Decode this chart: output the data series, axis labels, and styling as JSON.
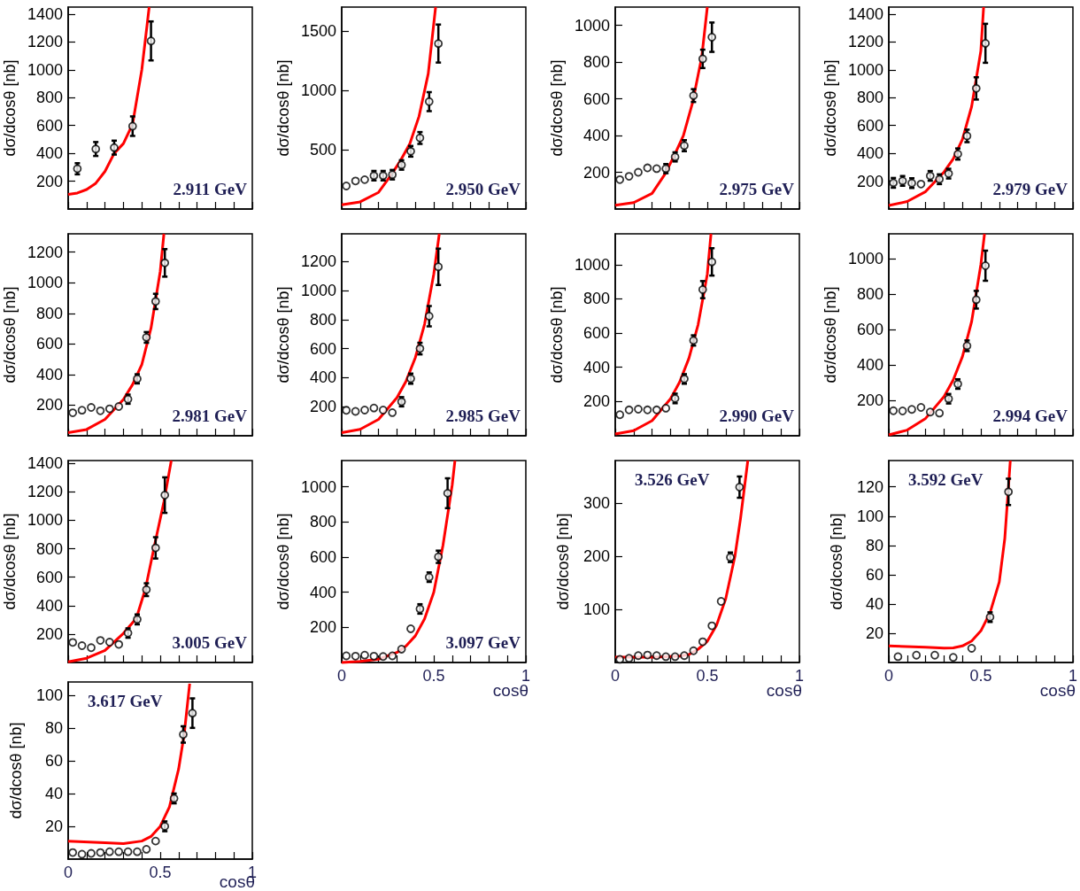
{
  "chart_data": [
    {
      "type": "scatter",
      "annotations": [
        "2.911 GeV"
      ],
      "ylabel": "dσ/dcosθ [nb]",
      "xlim": [
        0,
        1
      ],
      "xticks": [
        0,
        {
          "value": 0.1,
          "label": null
        },
        {
          "value": 0.2,
          "label": null
        },
        {
          "value": 0.3,
          "label": null
        },
        {
          "value": 0.4,
          "label": null
        },
        0.5,
        {
          "value": 0.6,
          "label": null
        },
        {
          "value": 0.7,
          "label": null
        },
        {
          "value": 0.8,
          "label": null
        },
        {
          "value": 0.9,
          "label": null
        },
        1
      ],
      "ylim": [
        0,
        1450
      ],
      "yticks": [
        200,
        400,
        600,
        800,
        1000,
        1200,
        1400
      ],
      "tick_labels": "y",
      "series": [
        {
          "type": "scatter",
          "marker": "circle",
          "color": "#000000",
          "x": [
            0.05,
            0.15,
            0.25,
            0.35,
            0.45
          ],
          "values": [
            289,
            431,
            441,
            595,
            1207
          ],
          "errors": [
            40,
            50,
            50,
            70,
            140
          ]
        },
        {
          "type": "line",
          "color": "#ff0000",
          "x": [
            0,
            0.05,
            0.1,
            0.15,
            0.2,
            0.25,
            0.3,
            0.35,
            0.4,
            0.44
          ],
          "values": [
            105,
            115,
            140,
            185,
            270,
            400,
            470,
            610,
            1000,
            1450
          ]
        }
      ]
    },
    {
      "type": "scatter",
      "annotations": [
        "2.950 GeV"
      ],
      "ylabel": "dσ/dcosθ [nb]",
      "xlim": [
        0,
        1
      ],
      "xticks": [
        0,
        {
          "value": 0.1,
          "label": null
        },
        {
          "value": 0.2,
          "label": null
        },
        {
          "value": 0.3,
          "label": null
        },
        {
          "value": 0.4,
          "label": null
        },
        0.5,
        {
          "value": 0.6,
          "label": null
        },
        {
          "value": 0.7,
          "label": null
        },
        {
          "value": 0.8,
          "label": null
        },
        {
          "value": 0.9,
          "label": null
        },
        1
      ],
      "ylim": [
        0,
        1700
      ],
      "yticks": [
        500,
        1000,
        1500
      ],
      "tick_labels": "y",
      "series": [
        {
          "type": "scatter",
          "marker": "circle",
          "color": "#000000",
          "x": [
            0.025,
            0.075,
            0.125,
            0.175,
            0.225,
            0.275,
            0.325,
            0.375,
            0.425,
            0.475,
            0.525
          ],
          "values": [
            194,
            236,
            247,
            281,
            281,
            289,
            371,
            486,
            598,
            904,
            1393
          ],
          "errors": [
            null,
            null,
            null,
            40,
            40,
            40,
            40,
            45,
            50,
            80,
            160
          ]
        },
        {
          "type": "line",
          "color": "#ff0000",
          "x": [
            0,
            0.1,
            0.2,
            0.27,
            0.32,
            0.37,
            0.42,
            0.47,
            0.51
          ],
          "values": [
            35,
            60,
            140,
            290,
            410,
            550,
            780,
            1140,
            1700
          ]
        }
      ]
    },
    {
      "type": "scatter",
      "annotations": [
        "2.975 GeV"
      ],
      "ylabel": "dσ/dcosθ [nb]",
      "xlim": [
        0,
        1
      ],
      "xticks": [
        0,
        {
          "value": 0.1,
          "label": null
        },
        {
          "value": 0.2,
          "label": null
        },
        {
          "value": 0.3,
          "label": null
        },
        {
          "value": 0.4,
          "label": null
        },
        0.5,
        {
          "value": 0.6,
          "label": null
        },
        {
          "value": 0.7,
          "label": null
        },
        {
          "value": 0.8,
          "label": null
        },
        {
          "value": 0.9,
          "label": null
        },
        1
      ],
      "ylim": [
        0,
        1100
      ],
      "yticks": [
        200,
        400,
        600,
        800,
        1000
      ],
      "tick_labels": "y",
      "series": [
        {
          "type": "scatter",
          "marker": "circle",
          "color": "#000000",
          "x": [
            0.025,
            0.075,
            0.125,
            0.175,
            0.225,
            0.275,
            0.325,
            0.375,
            0.425,
            0.475,
            0.525
          ],
          "values": [
            160,
            178,
            200,
            224,
            220,
            220,
            284,
            345,
            618,
            818,
            936
          ],
          "errors": [
            null,
            null,
            null,
            null,
            null,
            25,
            25,
            30,
            35,
            50,
            80
          ]
        },
        {
          "type": "line",
          "color": "#ff0000",
          "x": [
            0,
            0.1,
            0.2,
            0.27,
            0.32,
            0.37,
            0.42,
            0.47,
            0.5
          ],
          "values": [
            20,
            35,
            85,
            190,
            290,
            400,
            580,
            830,
            1100
          ]
        }
      ]
    },
    {
      "type": "scatter",
      "annotations": [
        "2.979 GeV"
      ],
      "ylabel": "dσ/dcosθ [nb]",
      "xlim": [
        0,
        1
      ],
      "xticks": [
        0,
        {
          "value": 0.1,
          "label": null
        },
        {
          "value": 0.2,
          "label": null
        },
        {
          "value": 0.3,
          "label": null
        },
        {
          "value": 0.4,
          "label": null
        },
        0.5,
        {
          "value": 0.6,
          "label": null
        },
        {
          "value": 0.7,
          "label": null
        },
        {
          "value": 0.8,
          "label": null
        },
        {
          "value": 0.9,
          "label": null
        },
        1
      ],
      "ylim": [
        0,
        1450
      ],
      "yticks": [
        200,
        400,
        600,
        800,
        1000,
        1200,
        1400
      ],
      "tick_labels": "y",
      "series": [
        {
          "type": "scatter",
          "marker": "circle",
          "color": "#000000",
          "x": [
            0.025,
            0.075,
            0.125,
            0.175,
            0.225,
            0.275,
            0.325,
            0.375,
            0.425,
            0.475,
            0.525
          ],
          "values": [
            188,
            202,
            186,
            179,
            238,
            214,
            254,
            395,
            525,
            866,
            1190
          ],
          "errors": [
            35,
            35,
            35,
            null,
            35,
            35,
            35,
            40,
            45,
            80,
            140
          ]
        },
        {
          "type": "line",
          "color": "#ff0000",
          "x": [
            0,
            0.1,
            0.2,
            0.3,
            0.35,
            0.4,
            0.45,
            0.5,
            0.515
          ],
          "values": [
            25,
            54,
            125,
            266,
            360,
            500,
            736,
            1136,
            1450
          ]
        }
      ]
    },
    {
      "type": "scatter",
      "annotations": [
        "2.981 GeV"
      ],
      "ylabel": "dσ/dcosθ [nb]",
      "xlim": [
        0,
        1
      ],
      "xticks": [
        0,
        {
          "value": 0.1,
          "label": null
        },
        {
          "value": 0.2,
          "label": null
        },
        {
          "value": 0.3,
          "label": null
        },
        {
          "value": 0.4,
          "label": null
        },
        0.5,
        {
          "value": 0.6,
          "label": null
        },
        {
          "value": 0.7,
          "label": null
        },
        {
          "value": 0.8,
          "label": null
        },
        {
          "value": 0.9,
          "label": null
        },
        1
      ],
      "ylim": [
        0,
        1320
      ],
      "yticks": [
        200,
        400,
        600,
        800,
        1000,
        1200
      ],
      "tick_labels": "y",
      "series": [
        {
          "type": "scatter",
          "marker": "circle",
          "color": "#000000",
          "x": [
            0.025,
            0.075,
            0.125,
            0.175,
            0.225,
            0.275,
            0.325,
            0.375,
            0.425,
            0.475,
            0.525
          ],
          "values": [
            150,
            167,
            185,
            163,
            176,
            191,
            239,
            372,
            643,
            878,
            1130
          ],
          "errors": [
            null,
            null,
            null,
            null,
            null,
            null,
            30,
            30,
            35,
            50,
            90
          ]
        },
        {
          "type": "line",
          "color": "#ff0000",
          "x": [
            0,
            0.1,
            0.2,
            0.3,
            0.35,
            0.4,
            0.45,
            0.5,
            0.52
          ],
          "values": [
            20,
            41,
            107,
            237,
            335,
            465,
            704,
            1074,
            1320
          ]
        }
      ]
    },
    {
      "type": "scatter",
      "annotations": [
        "2.985 GeV"
      ],
      "ylabel": "dσ/dcosθ [nb]",
      "xlim": [
        0,
        1
      ],
      "xticks": [
        0,
        {
          "value": 0.1,
          "label": null
        },
        {
          "value": 0.2,
          "label": null
        },
        {
          "value": 0.3,
          "label": null
        },
        {
          "value": 0.4,
          "label": null
        },
        0.5,
        {
          "value": 0.6,
          "label": null
        },
        {
          "value": 0.7,
          "label": null
        },
        {
          "value": 0.8,
          "label": null
        },
        {
          "value": 0.9,
          "label": null
        },
        1
      ],
      "ylim": [
        0,
        1390
      ],
      "yticks": [
        200,
        400,
        600,
        800,
        1000,
        1200
      ],
      "tick_labels": "y",
      "series": [
        {
          "type": "scatter",
          "marker": "circle",
          "color": "#000000",
          "x": [
            0.025,
            0.075,
            0.125,
            0.175,
            0.225,
            0.275,
            0.325,
            0.375,
            0.425,
            0.475,
            0.525
          ],
          "values": [
            175,
            168,
            177,
            191,
            177,
            159,
            234,
            393,
            600,
            823,
            1163
          ],
          "errors": [
            null,
            null,
            null,
            null,
            null,
            null,
            32,
            35,
            40,
            70,
            125
          ]
        },
        {
          "type": "line",
          "color": "#ff0000",
          "x": [
            0,
            0.1,
            0.2,
            0.3,
            0.35,
            0.4,
            0.45,
            0.5,
            0.53
          ],
          "values": [
            21,
            44,
            113,
            262,
            377,
            538,
            768,
            1113,
            1390
          ]
        }
      ]
    },
    {
      "type": "scatter",
      "annotations": [
        "2.990 GeV"
      ],
      "ylabel": "dσ/dcosθ [nb]",
      "xlim": [
        0,
        1
      ],
      "xticks": [
        0,
        {
          "value": 0.1,
          "label": null
        },
        {
          "value": 0.2,
          "label": null
        },
        {
          "value": 0.3,
          "label": null
        },
        {
          "value": 0.4,
          "label": null
        },
        0.5,
        {
          "value": 0.6,
          "label": null
        },
        {
          "value": 0.7,
          "label": null
        },
        {
          "value": 0.8,
          "label": null
        },
        {
          "value": 0.9,
          "label": null
        },
        1
      ],
      "ylim": [
        0,
        1180
      ],
      "yticks": [
        200,
        400,
        600,
        800,
        1000
      ],
      "tick_labels": "y",
      "series": [
        {
          "type": "scatter",
          "marker": "circle",
          "color": "#000000",
          "x": [
            0.025,
            0.075,
            0.125,
            0.175,
            0.225,
            0.275,
            0.325,
            0.375,
            0.425,
            0.475,
            0.525
          ],
          "values": [
            123,
            151,
            155,
            151,
            151,
            161,
            218,
            332,
            557,
            854,
            1016
          ],
          "errors": [
            null,
            null,
            null,
            null,
            null,
            null,
            28,
            28,
            30,
            50,
            80
          ]
        },
        {
          "type": "line",
          "color": "#ff0000",
          "x": [
            0,
            0.1,
            0.2,
            0.3,
            0.35,
            0.4,
            0.45,
            0.5,
            0.52
          ],
          "values": [
            10,
            30,
            88,
            216,
            314,
            452,
            649,
            945,
            1180
          ]
        }
      ]
    },
    {
      "type": "scatter",
      "annotations": [
        "2.994 GeV"
      ],
      "ylabel": "dσ/dcosθ [nb]",
      "xlim": [
        0,
        1
      ],
      "xticks": [
        0,
        {
          "value": 0.1,
          "label": null
        },
        {
          "value": 0.2,
          "label": null
        },
        {
          "value": 0.3,
          "label": null
        },
        {
          "value": 0.4,
          "label": null
        },
        0.5,
        {
          "value": 0.6,
          "label": null
        },
        {
          "value": 0.7,
          "label": null
        },
        {
          "value": 0.8,
          "label": null
        },
        {
          "value": 0.9,
          "label": null
        },
        1
      ],
      "ylim": [
        0,
        1140
      ],
      "yticks": [
        200,
        400,
        600,
        800,
        1000
      ],
      "tick_labels": "y",
      "series": [
        {
          "type": "scatter",
          "marker": "circle",
          "color": "#000000",
          "x": [
            0.025,
            0.075,
            0.125,
            0.175,
            0.225,
            0.275,
            0.325,
            0.375,
            0.425,
            0.475,
            0.525
          ],
          "values": [
            141,
            140,
            149,
            160,
            134,
            128,
            209,
            292,
            508,
            768,
            960
          ],
          "errors": [
            null,
            null,
            null,
            null,
            null,
            null,
            27,
            27,
            30,
            50,
            85
          ]
        },
        {
          "type": "line",
          "color": "#ff0000",
          "x": [
            0,
            0.1,
            0.2,
            0.3,
            0.35,
            0.4,
            0.45,
            0.5,
            0.52
          ],
          "values": [
            5,
            32,
            98,
            221,
            315,
            447,
            645,
            966,
            1140
          ]
        }
      ]
    },
    {
      "type": "scatter",
      "annotations": [
        "3.005 GeV"
      ],
      "ylabel": "dσ/dcosθ [nb]",
      "xlim": [
        0,
        1
      ],
      "xticks": [
        0,
        {
          "value": 0.1,
          "label": null
        },
        {
          "value": 0.2,
          "label": null
        },
        {
          "value": 0.3,
          "label": null
        },
        {
          "value": 0.4,
          "label": null
        },
        0.5,
        {
          "value": 0.6,
          "label": null
        },
        {
          "value": 0.7,
          "label": null
        },
        {
          "value": 0.8,
          "label": null
        },
        {
          "value": 0.9,
          "label": null
        },
        1
      ],
      "ylim": [
        0,
        1420
      ],
      "yticks": [
        200,
        400,
        600,
        800,
        1000,
        1200,
        1400
      ],
      "tick_labels": "y",
      "series": [
        {
          "type": "scatter",
          "marker": "circle",
          "color": "#000000",
          "x": [
            0.025,
            0.075,
            0.125,
            0.175,
            0.225,
            0.275,
            0.325,
            0.375,
            0.425,
            0.475,
            0.525
          ],
          "values": [
            141,
            118,
            104,
            155,
            143,
            127,
            207,
            303,
            512,
            806,
            1177
          ],
          "errors": [
            null,
            null,
            null,
            null,
            null,
            null,
            33,
            35,
            45,
            75,
            125
          ]
        },
        {
          "type": "line",
          "color": "#ff0000",
          "x": [
            0,
            0.1,
            0.2,
            0.3,
            0.37,
            0.42,
            0.47,
            0.52,
            0.56
          ],
          "values": [
            5,
            30,
            85,
            205,
            310,
            520,
            830,
            1130,
            1420
          ]
        }
      ]
    },
    {
      "type": "scatter",
      "annotations": [
        "3.097 GeV"
      ],
      "xlabel": "cosθ",
      "ylabel": "dσ/dcosθ [nb]",
      "xlim": [
        0,
        1
      ],
      "xticks": [
        0,
        {
          "value": 0.1,
          "label": null
        },
        {
          "value": 0.2,
          "label": null
        },
        {
          "value": 0.3,
          "label": null
        },
        {
          "value": 0.4,
          "label": null
        },
        0.5,
        {
          "value": 0.6,
          "label": null
        },
        {
          "value": 0.7,
          "label": null
        },
        {
          "value": 0.8,
          "label": null
        },
        {
          "value": 0.9,
          "label": null
        },
        1
      ],
      "ylim": [
        0,
        1150
      ],
      "yticks": [
        200,
        400,
        600,
        800,
        1000
      ],
      "series": [
        {
          "type": "scatter",
          "marker": "circle",
          "color": "#000000",
          "x": [
            0.025,
            0.075,
            0.125,
            0.175,
            0.225,
            0.275,
            0.325,
            0.375,
            0.425,
            0.475,
            0.525,
            0.575
          ],
          "values": [
            38,
            36,
            42,
            36,
            34,
            38,
            76,
            192,
            305,
            486,
            602,
            964
          ],
          "errors": [
            null,
            null,
            null,
            null,
            null,
            null,
            null,
            null,
            27,
            27,
            35,
            85
          ]
        },
        {
          "type": "line",
          "color": "#ff0000",
          "x": [
            0,
            0.1,
            0.2,
            0.3,
            0.35,
            0.4,
            0.45,
            0.5,
            0.55,
            0.6,
            0.615
          ],
          "values": [
            0,
            6,
            19,
            57,
            95,
            152,
            248,
            400,
            667,
            1010,
            1150
          ]
        }
      ]
    },
    {
      "type": "scatter",
      "annotations": [
        "3.526 GeV"
      ],
      "xlabel": "cosθ",
      "ylabel": "dσ/dcosθ [nb]",
      "xlim": [
        0,
        1
      ],
      "xticks": [
        0,
        {
          "value": 0.1,
          "label": null
        },
        {
          "value": 0.2,
          "label": null
        },
        {
          "value": 0.3,
          "label": null
        },
        {
          "value": 0.4,
          "label": null
        },
        0.5,
        {
          "value": 0.6,
          "label": null
        },
        {
          "value": 0.7,
          "label": null
        },
        {
          "value": 0.8,
          "label": null
        },
        {
          "value": 0.9,
          "label": null
        },
        1
      ],
      "ylim": [
        0,
        380
      ],
      "yticks": [
        100,
        200,
        300
      ],
      "series": [
        {
          "type": "scatter",
          "marker": "circle",
          "color": "#000000",
          "x": [
            0.025,
            0.075,
            0.125,
            0.175,
            0.225,
            0.275,
            0.325,
            0.375,
            0.425,
            0.475,
            0.525,
            0.575,
            0.625,
            0.675
          ],
          "values": [
            6,
            8,
            13,
            14,
            13,
            11,
            11,
            13,
            22,
            39,
            69,
            115,
            198,
            330
          ],
          "errors": [
            null,
            null,
            null,
            null,
            null,
            null,
            null,
            null,
            null,
            null,
            null,
            null,
            9,
            20
          ]
        },
        {
          "type": "line",
          "color": "#ff0000",
          "x": [
            0,
            0.2,
            0.35,
            0.4,
            0.45,
            0.5,
            0.55,
            0.6,
            0.65,
            0.68,
            0.72
          ],
          "values": [
            10,
            10,
            12,
            15,
            25,
            40,
            70,
            120,
            200,
            270,
            380
          ]
        }
      ]
    },
    {
      "type": "scatter",
      "annotations": [
        "3.592 GeV"
      ],
      "xlabel": "cosθ",
      "ylabel": "dσ/dcosθ [nb]",
      "xlim": [
        0,
        1
      ],
      "xticks": [
        0,
        {
          "value": 0.1,
          "label": null
        },
        {
          "value": 0.2,
          "label": null
        },
        {
          "value": 0.3,
          "label": null
        },
        {
          "value": 0.4,
          "label": null
        },
        0.5,
        {
          "value": 0.6,
          "label": null
        },
        {
          "value": 0.7,
          "label": null
        },
        {
          "value": 0.8,
          "label": null
        },
        {
          "value": 0.9,
          "label": null
        },
        1
      ],
      "ylim": [
        0,
        138
      ],
      "yticks": [
        20,
        40,
        60,
        80,
        100,
        120
      ],
      "series": [
        {
          "type": "scatter",
          "marker": "circle",
          "color": "#000000",
          "x": [
            0.05,
            0.15,
            0.25,
            0.35,
            0.45,
            0.55,
            0.65
          ],
          "values": [
            4,
            5,
            5,
            3.5,
            9.7,
            31,
            116.6
          ],
          "errors": [
            null,
            null,
            null,
            null,
            null,
            3.3,
            9
          ]
        },
        {
          "type": "line",
          "color": "#ff0000",
          "x": [
            0,
            0.2,
            0.3,
            0.35,
            0.4,
            0.45,
            0.5,
            0.55,
            0.6,
            0.63,
            0.66
          ],
          "values": [
            11.3,
            10.4,
            9.9,
            10,
            11.3,
            14.7,
            21.6,
            34,
            55,
            84.7,
            138
          ]
        }
      ]
    },
    {
      "type": "scatter",
      "annotations": [
        "3.617 GeV"
      ],
      "xlabel": "cosθ",
      "ylabel": "dσ/dcosθ [nb]",
      "xlim": [
        0,
        1
      ],
      "xticks": [
        0,
        {
          "value": 0.1,
          "label": null
        },
        {
          "value": 0.2,
          "label": null
        },
        {
          "value": 0.3,
          "label": null
        },
        {
          "value": 0.4,
          "label": null
        },
        0.5,
        {
          "value": 0.6,
          "label": null
        },
        {
          "value": 0.7,
          "label": null
        },
        {
          "value": 0.8,
          "label": null
        },
        {
          "value": 0.9,
          "label": null
        },
        1
      ],
      "ylim": [
        0,
        108
      ],
      "yticks": [
        20,
        40,
        60,
        80,
        100
      ],
      "series": [
        {
          "type": "scatter",
          "marker": "circle",
          "color": "#000000",
          "x": [
            0.025,
            0.075,
            0.125,
            0.175,
            0.225,
            0.275,
            0.325,
            0.375,
            0.425,
            0.475,
            0.525,
            0.575,
            0.625,
            0.675
          ],
          "values": [
            4,
            3,
            3.5,
            4,
            4.5,
            4.5,
            4.5,
            4.5,
            6,
            11,
            20,
            37,
            76,
            89
          ],
          "errors": [
            null,
            null,
            null,
            null,
            null,
            null,
            null,
            null,
            null,
            null,
            3,
            3,
            5,
            9
          ]
        },
        {
          "type": "line",
          "color": "#ff0000",
          "x": [
            0,
            0.2,
            0.3,
            0.4,
            0.45,
            0.5,
            0.55,
            0.6,
            0.63,
            0.66
          ],
          "values": [
            11,
            10,
            9.5,
            11,
            13.8,
            20,
            31.8,
            55,
            76,
            107
          ]
        }
      ]
    }
  ]
}
